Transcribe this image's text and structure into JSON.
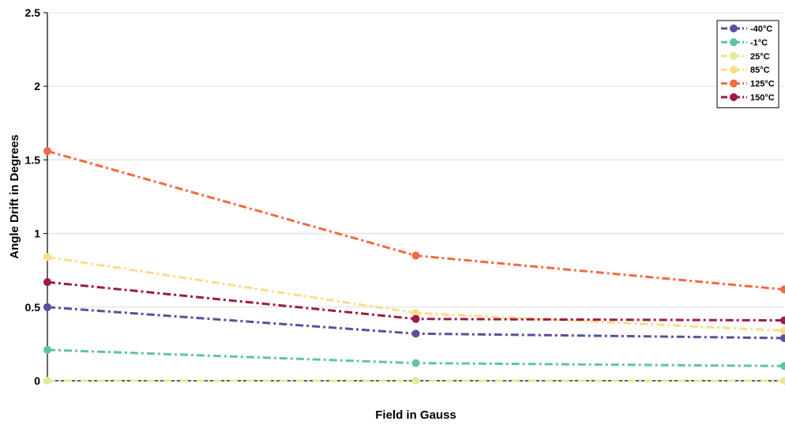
{
  "chart_data": {
    "type": "line",
    "title": "",
    "xlabel": "Field in Gauss",
    "ylabel": "Angle Drift in Degrees",
    "x": [
      1,
      2,
      3
    ],
    "xlim": [
      1,
      3
    ],
    "ylim": [
      0,
      2.5
    ],
    "yticks": [
      0,
      0.5,
      1,
      1.5,
      2,
      2.5
    ],
    "ytick_labels": [
      "0",
      "0.5",
      "1",
      "1.5",
      "2",
      "2.5"
    ],
    "grid": "horizontal",
    "legend_position": "top-right",
    "line_style": "dash-dot",
    "series": [
      {
        "name": "-40°C",
        "color": "#5b4f9e",
        "values": [
          0.5,
          0.32,
          0.29
        ]
      },
      {
        "name": "-1°C",
        "color": "#5fc4a1",
        "values": [
          0.21,
          0.12,
          0.1
        ]
      },
      {
        "name": "25°C",
        "color": "#e6e89a",
        "values": [
          0.0,
          0.0,
          0.0
        ]
      },
      {
        "name": "85°C",
        "color": "#fbdc87",
        "values": [
          0.84,
          0.46,
          0.34
        ]
      },
      {
        "name": "125°C",
        "color": "#ef6a45",
        "values": [
          1.56,
          0.85,
          0.62
        ]
      },
      {
        "name": "150°C",
        "color": "#9e1a48",
        "values": [
          0.67,
          0.42,
          0.41
        ]
      }
    ]
  }
}
